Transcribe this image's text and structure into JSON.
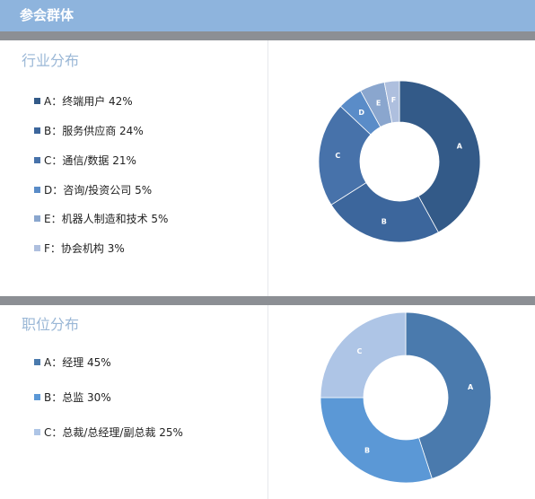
{
  "header": {
    "title": "参会群体"
  },
  "industry": {
    "title": "行业分布",
    "legend": [
      {
        "text": "A：终端用户 42%",
        "color": "#335a88"
      },
      {
        "text": "B：服务供应商 24%",
        "color": "#3c669c"
      },
      {
        "text": "C：通信/数据 21%",
        "color": "#4772aa"
      },
      {
        "text": "D：咨询/投资公司 5%",
        "color": "#5a8cc8"
      },
      {
        "text": "E：机器人制造和技术 5%",
        "color": "#8aa6ce"
      },
      {
        "text": "F：协会机构 3%",
        "color": "#aebfde"
      }
    ],
    "chart_data": {
      "type": "pie",
      "categories": [
        "A",
        "B",
        "C",
        "D",
        "E",
        "F"
      ],
      "values": [
        42,
        24,
        21,
        5,
        5,
        3
      ],
      "colors": [
        "#335a88",
        "#3c669c",
        "#4772aa",
        "#5a8cc8",
        "#8aa6ce",
        "#aebfde"
      ],
      "hole": true
    }
  },
  "position": {
    "title": "职位分布",
    "legend": [
      {
        "text": "A：经理 45%",
        "color": "#4a7aad"
      },
      {
        "text": "B：总监 30%",
        "color": "#5b98d6"
      },
      {
        "text": "C：总裁/总经理/副总裁 25%",
        "color": "#aec5e6"
      }
    ],
    "chart_data": {
      "type": "pie",
      "categories": [
        "A",
        "B",
        "C"
      ],
      "values": [
        45,
        30,
        25
      ],
      "colors": [
        "#4a7aad",
        "#5b98d6",
        "#aec5e6"
      ],
      "hole": true
    }
  }
}
